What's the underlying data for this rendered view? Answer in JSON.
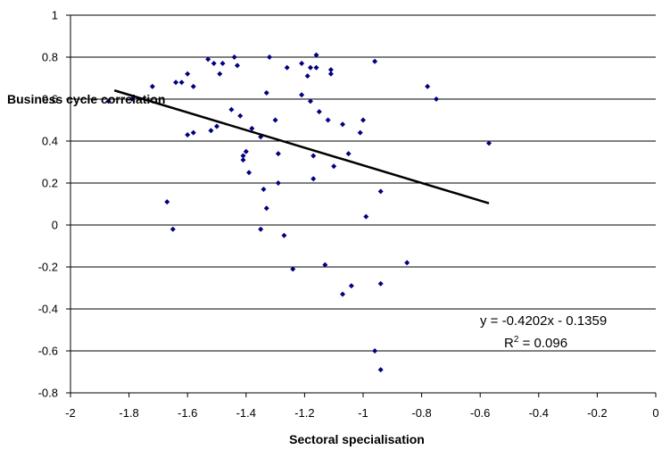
{
  "chart_data": {
    "type": "scatter",
    "title": "",
    "xlabel": "Sectoral specialisation",
    "ylabel": "Business cycle correlation",
    "xlim": [
      -2,
      0
    ],
    "ylim": [
      -0.8,
      1
    ],
    "x_ticks": [
      "-2",
      "-1.8",
      "-1.6",
      "-1.4",
      "-1.2",
      "-1",
      "-0.8",
      "-0.6",
      "-0.4",
      "-0.2",
      "0"
    ],
    "y_ticks": [
      "1",
      "0.8",
      "0.6",
      "0.4",
      "0.2",
      "0",
      "-0.2",
      "-0.4",
      "-0.6",
      "-0.8"
    ],
    "grid": "horizontal",
    "marker_color": "#000080",
    "trendline_color": "#000000",
    "trendline": {
      "slope": -0.4202,
      "intercept": -0.1359,
      "x_range": [
        -1.85,
        -0.57
      ],
      "equation": "y = -0.4202x - 0.1359",
      "r2_label": "R",
      "r2_sup": "2",
      "r2_value": " = 0.096"
    },
    "points": [
      [
        -1.87,
        0.59
      ],
      [
        -1.79,
        0.6
      ],
      [
        -1.72,
        0.66
      ],
      [
        -1.67,
        0.11
      ],
      [
        -1.65,
        -0.02
      ],
      [
        -1.64,
        0.68
      ],
      [
        -1.62,
        0.68
      ],
      [
        -1.6,
        0.72
      ],
      [
        -1.6,
        0.43
      ],
      [
        -1.58,
        0.44
      ],
      [
        -1.58,
        0.66
      ],
      [
        -1.53,
        0.79
      ],
      [
        -1.52,
        0.45
      ],
      [
        -1.51,
        0.77
      ],
      [
        -1.5,
        0.47
      ],
      [
        -1.49,
        0.72
      ],
      [
        -1.48,
        0.77
      ],
      [
        -1.45,
        0.55
      ],
      [
        -1.44,
        0.8
      ],
      [
        -1.43,
        0.76
      ],
      [
        -1.42,
        0.52
      ],
      [
        -1.41,
        0.33
      ],
      [
        -1.41,
        0.31
      ],
      [
        -1.4,
        0.35
      ],
      [
        -1.39,
        0.25
      ],
      [
        -1.38,
        0.46
      ],
      [
        -1.35,
        -0.02
      ],
      [
        -1.35,
        0.42
      ],
      [
        -1.34,
        0.17
      ],
      [
        -1.33,
        0.08
      ],
      [
        -1.33,
        0.63
      ],
      [
        -1.32,
        0.8
      ],
      [
        -1.3,
        0.5
      ],
      [
        -1.29,
        0.2
      ],
      [
        -1.29,
        0.34
      ],
      [
        -1.27,
        -0.05
      ],
      [
        -1.26,
        0.75
      ],
      [
        -1.24,
        -0.21
      ],
      [
        -1.21,
        0.62
      ],
      [
        -1.21,
        0.77
      ],
      [
        -1.19,
        0.71
      ],
      [
        -1.18,
        0.75
      ],
      [
        -1.18,
        0.59
      ],
      [
        -1.17,
        0.22
      ],
      [
        -1.17,
        0.33
      ],
      [
        -1.16,
        0.75
      ],
      [
        -1.16,
        0.81
      ],
      [
        -1.15,
        0.54
      ],
      [
        -1.13,
        -0.19
      ],
      [
        -1.12,
        0.5
      ],
      [
        -1.11,
        0.74
      ],
      [
        -1.11,
        0.72
      ],
      [
        -1.1,
        0.28
      ],
      [
        -1.07,
        -0.33
      ],
      [
        -1.07,
        0.48
      ],
      [
        -1.05,
        0.34
      ],
      [
        -1.04,
        -0.29
      ],
      [
        -1.01,
        0.44
      ],
      [
        -1.0,
        0.5
      ],
      [
        -0.99,
        0.04
      ],
      [
        -0.96,
        0.78
      ],
      [
        -0.96,
        -0.6
      ],
      [
        -0.94,
        -0.69
      ],
      [
        -0.94,
        0.16
      ],
      [
        -0.94,
        -0.28
      ],
      [
        -0.85,
        -0.18
      ],
      [
        -0.78,
        0.66
      ],
      [
        -0.75,
        0.6
      ],
      [
        -0.57,
        0.39
      ]
    ]
  }
}
